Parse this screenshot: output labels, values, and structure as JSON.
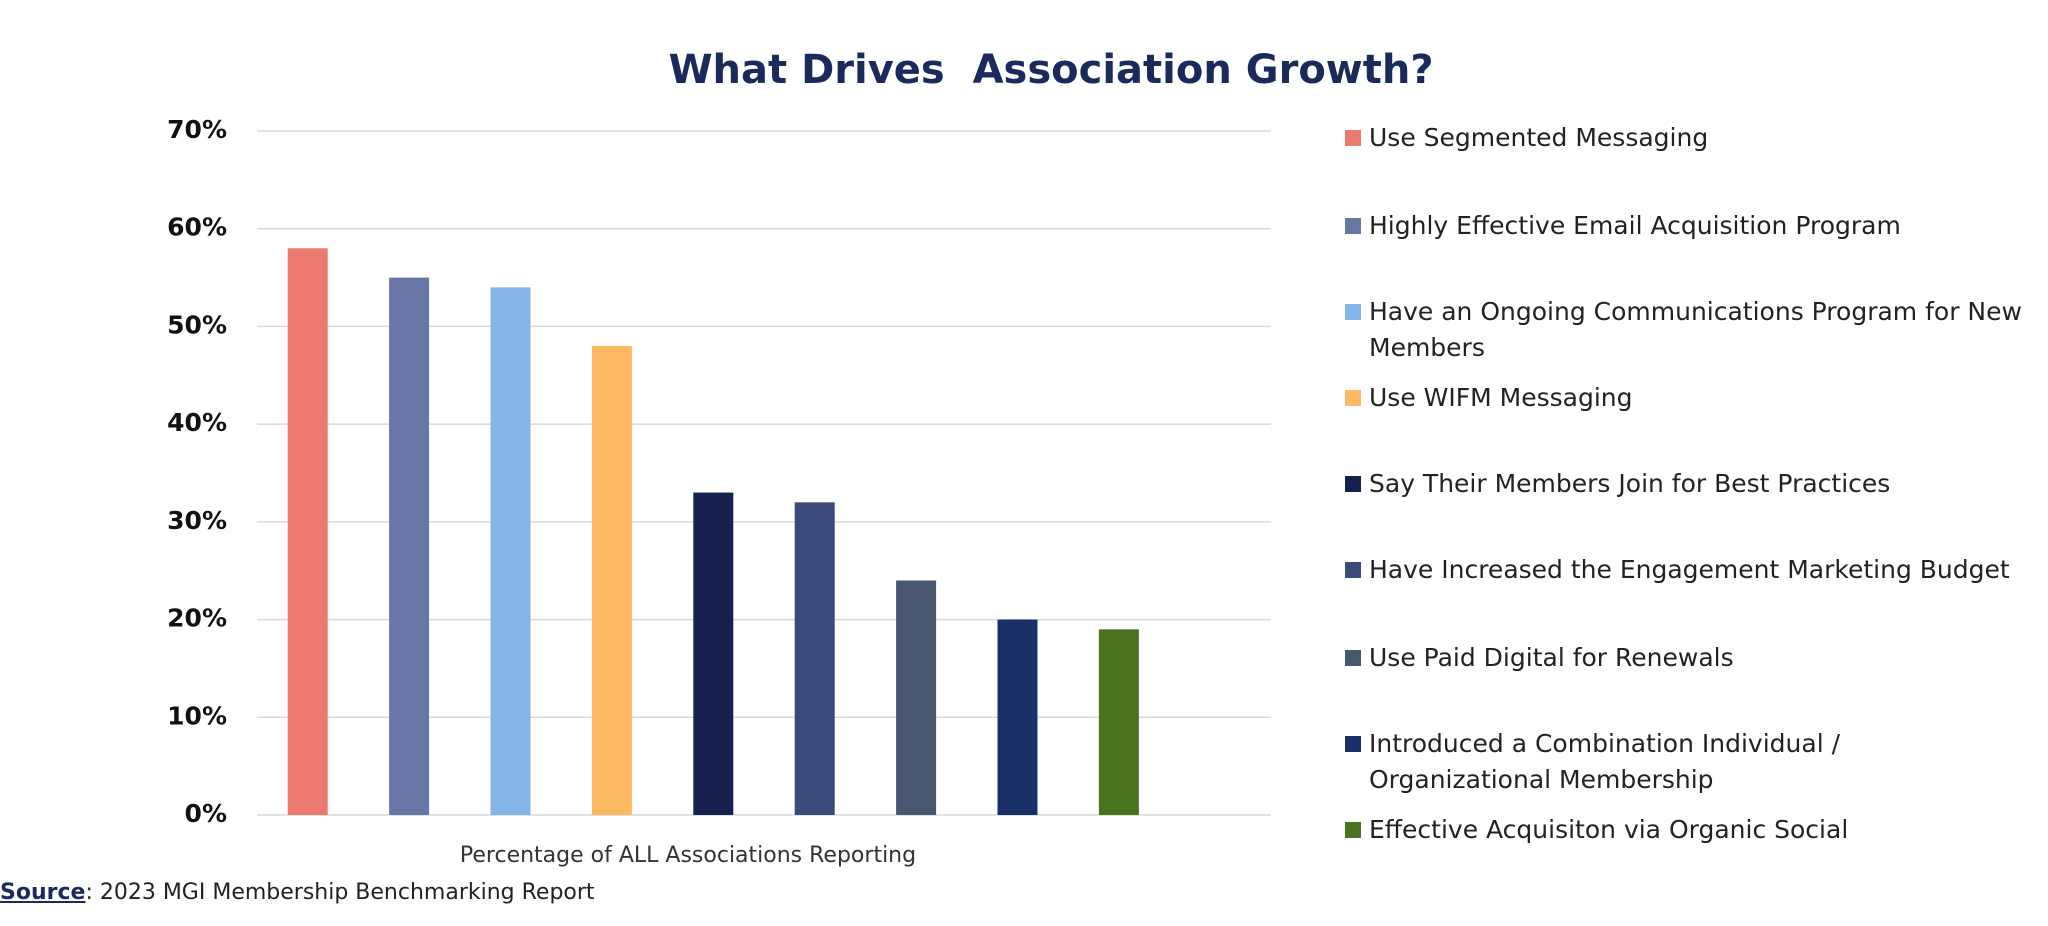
{
  "chart_data": {
    "type": "bar",
    "title": "What Drives  Association Growth?",
    "x_label": "Percentage of ALL Associations Reporting",
    "source": {
      "label": "Source",
      "text": ": 2023 MGI Membership Benchmarking Report"
    },
    "ylim": [
      0,
      70
    ],
    "yticks": [
      {
        "value": 0,
        "label": "0%"
      },
      {
        "value": 10,
        "label": "10%"
      },
      {
        "value": 20,
        "label": "20%"
      },
      {
        "value": 30,
        "label": "30%"
      },
      {
        "value": 40,
        "label": "40%"
      },
      {
        "value": 50,
        "label": "50%"
      },
      {
        "value": 60,
        "label": "60%"
      },
      {
        "value": 70,
        "label": "70%"
      }
    ],
    "grid": true,
    "legend": "right",
    "series": [
      {
        "name": "Use Segmented Messaging",
        "color": "#ec7a6e",
        "values": [
          58
        ]
      },
      {
        "name": "Highly Effective Email Acquisition Program",
        "color": "#6877a6",
        "values": [
          55
        ]
      },
      {
        "name": "Have an Ongoing Communications Program for New Members",
        "color": "#85b4e8",
        "values": [
          54
        ]
      },
      {
        "name": "Use WIFM Messaging",
        "color": "#fdb863",
        "values": [
          48
        ]
      },
      {
        "name": "Say Their Members Join for Best Practices",
        "color": "#16214f",
        "values": [
          33
        ]
      },
      {
        "name": "Have Increased the Engagement Marketing Budget",
        "color": "#3c4a7a",
        "values": [
          32
        ]
      },
      {
        "name": "Use Paid Digital for Renewals",
        "color": "#46576f",
        "values": [
          24
        ]
      },
      {
        "name": "Introduced a Combination  Individual / Organizational Membership",
        "color": "#1a3068",
        "values": [
          20
        ]
      },
      {
        "name": "Effective Acquisiton via Organic Social",
        "color": "#4a7320",
        "values": [
          19
        ]
      }
    ]
  }
}
